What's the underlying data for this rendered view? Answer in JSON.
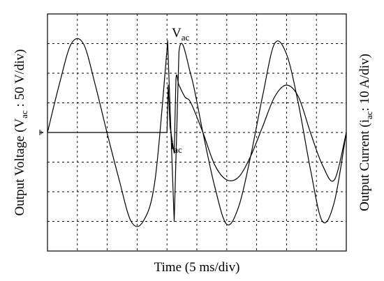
{
  "chart_data": {
    "type": "line",
    "xlabel": "Time (5 ms/div)",
    "ylabel_left": {
      "main": "Output Voltage (V",
      "sub": "ac",
      "rest": " : 50 V/div)"
    },
    "ylabel_right": {
      "main": "Output Current (i",
      "sub": "ac",
      "rest": ": 10 A/div)"
    },
    "grid": true,
    "divisions": {
      "x": 10,
      "y": 8
    },
    "x_unit": "ms",
    "xlim": [
      0,
      50
    ],
    "voltage_scale_V_per_div": 50,
    "current_scale_A_per_div": 10,
    "annotations": [
      {
        "main": "V",
        "sub": "ac",
        "target": "voltage"
      },
      {
        "main": "i",
        "sub": "ac",
        "target": "current"
      }
    ],
    "series": [
      {
        "key": "voltage",
        "x": [
          0,
          2,
          4,
          6,
          8,
          10,
          12,
          14,
          16,
          18,
          20,
          20.1,
          21.2,
          22,
          24,
          26,
          28,
          30,
          32,
          34,
          36,
          38,
          40,
          42,
          44,
          46,
          48,
          50
        ],
        "y": [
          0,
          82,
          150,
          150,
          80,
          -2,
          -80,
          -150,
          -150,
          -80,
          140,
          155,
          -150,
          136,
          97,
          0,
          -92,
          -155,
          -125,
          -40,
          62,
          150,
          132,
          48,
          -62,
          -150,
          -117,
          0
        ]
      },
      {
        "key": "current",
        "x": [
          0,
          10,
          20,
          20.2,
          20.5,
          21.2,
          21.5,
          22,
          23,
          24,
          26,
          28,
          30,
          32,
          34,
          36,
          38,
          40,
          42,
          44,
          46,
          48,
          50
        ],
        "y": [
          0,
          0,
          0,
          16,
          2,
          -7,
          18,
          16,
          12,
          10,
          0,
          -11,
          -16,
          -15,
          -8,
          2,
          12,
          16,
          12,
          0,
          -11,
          -16,
          0
        ]
      }
    ]
  }
}
